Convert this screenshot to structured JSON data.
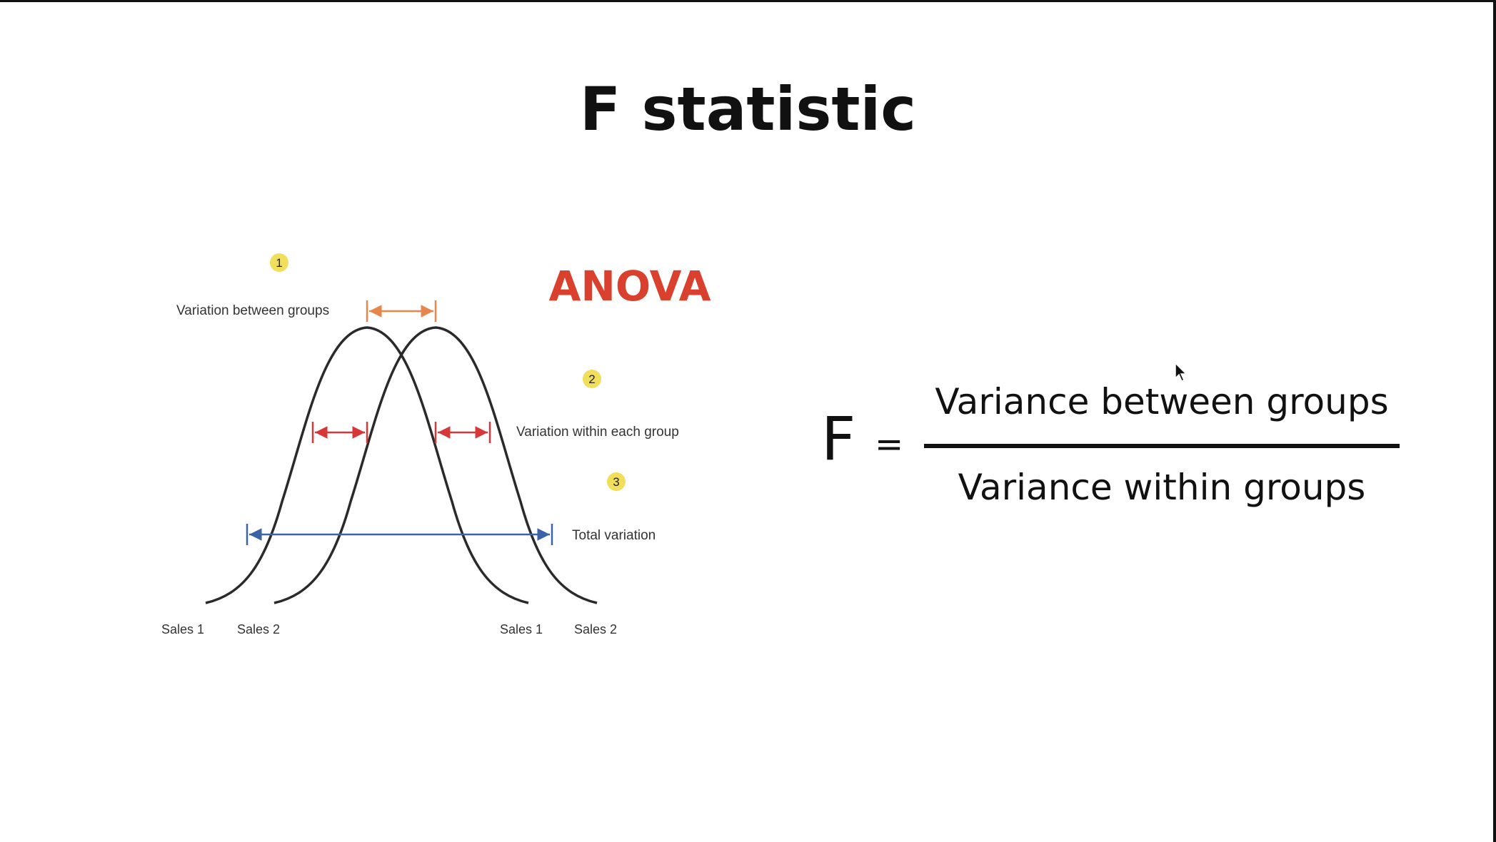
{
  "slide": {
    "title": "F statistic"
  },
  "diagram": {
    "anova_label": "ANOVA",
    "markers": [
      "1",
      "2",
      "3"
    ],
    "labels": {
      "between": "Variation between groups",
      "within": "Variation within each group",
      "total": "Total variation"
    },
    "axis_labels": [
      "Sales 1",
      "Sales 2",
      "Sales 1",
      "Sales 2"
    ],
    "colors": {
      "anova": "#d9412e",
      "marker": "#f1de5a",
      "between_arrow": "#e8854a",
      "within_arrow": "#d8373a",
      "total_arrow": "#3a63a8",
      "curve": "#2a2a2a"
    }
  },
  "formula": {
    "lhs": "F",
    "equals": "=",
    "numerator": "Variance between groups",
    "denominator": "Variance within groups"
  }
}
